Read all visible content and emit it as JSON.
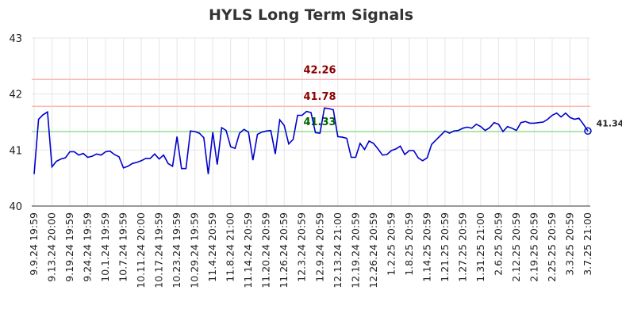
{
  "chart_data": {
    "type": "line",
    "title": "HYLS Long Term Signals",
    "categories": [
      "9.9.24 19:59",
      null,
      null,
      null,
      "9.13.24 20:00",
      null,
      null,
      null,
      "9.19.24 19:59",
      null,
      null,
      null,
      "9.24.24 19:59",
      null,
      null,
      null,
      "10.1.24 19:59",
      null,
      null,
      null,
      "10.7.24 19:59",
      null,
      null,
      null,
      "10.11.24 20:00",
      null,
      null,
      null,
      "10.17.24 19:59",
      null,
      null,
      null,
      "10.23.24 19:59",
      null,
      null,
      null,
      "10.29.24 19:59",
      null,
      null,
      null,
      "11.4.24 20:59",
      null,
      null,
      null,
      "11.8.24 21:00",
      null,
      null,
      null,
      "11.14.24 20:59",
      null,
      null,
      null,
      "11.20.24 20:59",
      null,
      null,
      null,
      "11.26.24 20:59",
      null,
      null,
      null,
      "12.3.24 20:59",
      null,
      null,
      null,
      "12.9.24 20:59",
      null,
      null,
      null,
      "12.13.24 21:00",
      null,
      null,
      null,
      "12.19.24 20:59",
      null,
      null,
      null,
      "12.26.24 20:59",
      null,
      null,
      null,
      "1.2.25 20:59",
      null,
      null,
      null,
      "1.8.25 20:59",
      null,
      null,
      null,
      "1.14.25 20:59",
      null,
      null,
      null,
      "1.21.25 20:59",
      null,
      null,
      null,
      "1.27.25 20:59",
      null,
      null,
      null,
      "1.31.25 21:00",
      null,
      null,
      null,
      "2.6.25 20:59",
      null,
      null,
      null,
      "2.12.25 20:59",
      null,
      null,
      null,
      "2.19.25 20:59",
      null,
      null,
      null,
      "2.25.25 20:59",
      null,
      null,
      null,
      "3.3.25 20:59",
      null,
      null,
      null,
      "3.7.25 21:00"
    ],
    "values": [
      40.57,
      41.55,
      41.63,
      41.68,
      40.7,
      40.8,
      40.84,
      40.86,
      40.97,
      40.97,
      40.91,
      40.94,
      40.87,
      40.89,
      40.93,
      40.91,
      40.97,
      40.98,
      40.92,
      40.88,
      40.68,
      40.71,
      40.76,
      40.78,
      40.81,
      40.85,
      40.85,
      40.93,
      40.84,
      40.91,
      40.76,
      40.71,
      41.24,
      40.67,
      40.67,
      41.34,
      41.33,
      41.3,
      41.22,
      40.57,
      41.32,
      40.74,
      41.4,
      41.35,
      41.06,
      41.03,
      41.3,
      41.37,
      41.32,
      40.82,
      41.28,
      41.32,
      41.34,
      41.35,
      40.93,
      41.54,
      41.44,
      41.11,
      41.19,
      41.62,
      41.62,
      41.69,
      41.67,
      41.31,
      41.3,
      41.75,
      41.74,
      41.72,
      41.24,
      41.23,
      41.21,
      40.87,
      40.87,
      41.12,
      41.01,
      41.16,
      41.12,
      41.02,
      40.91,
      40.92,
      40.99,
      41.02,
      41.07,
      40.92,
      40.99,
      40.99,
      40.86,
      40.81,
      40.86,
      41.1,
      41.18,
      41.26,
      41.34,
      41.3,
      41.34,
      41.35,
      41.39,
      41.41,
      41.39,
      41.46,
      41.42,
      41.35,
      41.4,
      41.49,
      41.46,
      41.33,
      41.42,
      41.39,
      41.35,
      41.49,
      41.51,
      41.48,
      41.48,
      41.49,
      41.5,
      41.55,
      41.62,
      41.66,
      41.59,
      41.66,
      41.58,
      41.55,
      41.57,
      41.46,
      41.34
    ],
    "color": "#0000cc",
    "hlines": [
      {
        "value": 42.26,
        "color": "#ffb3b3",
        "label_color": "#8b0000"
      },
      {
        "value": 41.78,
        "color": "#ffb3b3",
        "label_color": "#8b0000"
      },
      {
        "value": 41.33,
        "color": "#90e090",
        "label_color": "#006400"
      }
    ],
    "ylim": [
      40,
      43
    ],
    "yticks": [
      40,
      41,
      42,
      43
    ],
    "grid": true
  }
}
